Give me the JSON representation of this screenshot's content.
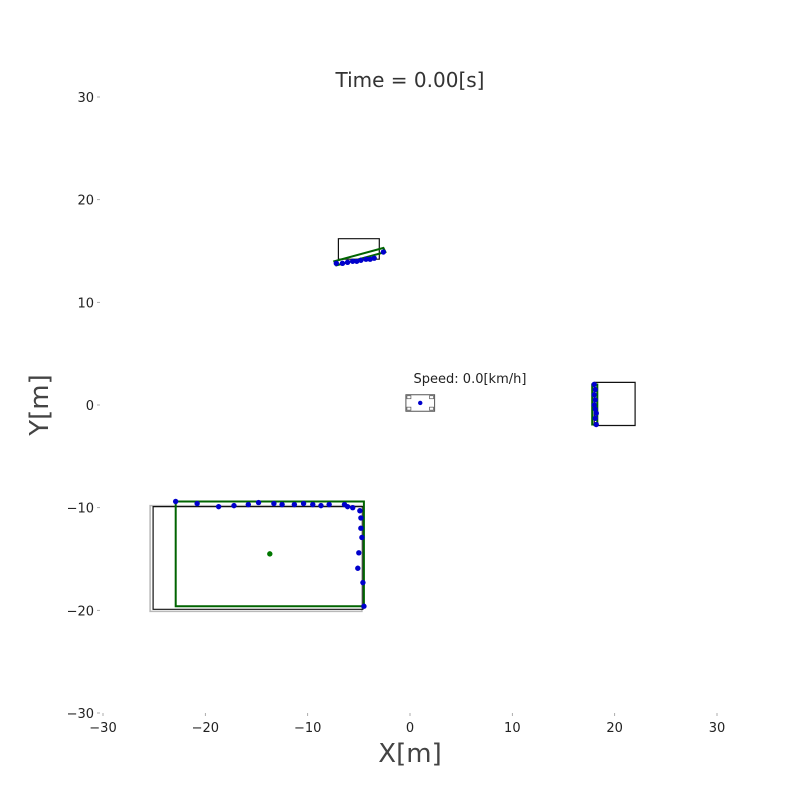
{
  "chart_data": {
    "type": "scatter",
    "title": "Time = 0.00[s]",
    "xlabel": "X[m]",
    "ylabel": "Y[m]",
    "xlim": [
      -30,
      30
    ],
    "ylim": [
      -30,
      30
    ],
    "xticks": [
      -30,
      -20,
      -10,
      0,
      10,
      20,
      30
    ],
    "yticks": [
      -30,
      -20,
      -10,
      0,
      10,
      20,
      30
    ],
    "xtick_labels": [
      "−30",
      "−20",
      "−10",
      "0",
      "10",
      "20",
      "30"
    ],
    "ytick_labels": [
      "−30",
      "−20",
      "−10",
      "0",
      "10",
      "20",
      "30"
    ],
    "grid": false,
    "speed_text": "Speed: 0.0[km/h]",
    "colors": {
      "points": "#0000cc",
      "fitted_box": "#006400",
      "true_box": "#111111",
      "gray_box": "#b8b8b8",
      "center": "#007700",
      "ego_vehicle": "#555555"
    },
    "objects": [
      {
        "id": "object-upper",
        "true_box": [
          [
            -7,
            16.2
          ],
          [
            -3,
            16.2
          ],
          [
            -3,
            14.2
          ],
          [
            -7,
            14.2
          ]
        ],
        "fitted_box": [
          [
            -7.2,
            13.6
          ],
          [
            -2.4,
            14.9
          ],
          [
            -2.6,
            15.3
          ],
          [
            -7.4,
            14.0
          ]
        ],
        "points": [
          [
            -7.2,
            13.8
          ],
          [
            -6.6,
            13.8
          ],
          [
            -6.1,
            13.9
          ],
          [
            -5.6,
            14.0
          ],
          [
            -5.2,
            14.0
          ],
          [
            -4.8,
            14.1
          ],
          [
            -4.3,
            14.2
          ],
          [
            -3.9,
            14.2
          ],
          [
            -3.5,
            14.3
          ],
          [
            -2.6,
            14.9
          ]
        ]
      },
      {
        "id": "object-right",
        "true_box": [
          [
            18,
            2.2
          ],
          [
            22,
            2.2
          ],
          [
            22,
            -2
          ],
          [
            18,
            -2
          ]
        ],
        "fitted_box": [
          [
            17.8,
            2.0
          ],
          [
            18.3,
            2.0
          ],
          [
            18.3,
            -1.9
          ],
          [
            17.8,
            -1.9
          ]
        ],
        "points": [
          [
            18.0,
            2.0
          ],
          [
            18.1,
            1.5
          ],
          [
            18.0,
            1.0
          ],
          [
            18.1,
            0.5
          ],
          [
            18.0,
            0.0
          ],
          [
            18.1,
            -0.4
          ],
          [
            18.2,
            -0.8
          ],
          [
            18.1,
            -1.3
          ],
          [
            18.2,
            -1.9
          ]
        ]
      },
      {
        "id": "object-large",
        "true_box": [
          [
            -25.1,
            -9.9
          ],
          [
            -4.6,
            -9.9
          ],
          [
            -4.6,
            -19.9
          ],
          [
            -25.1,
            -19.9
          ]
        ],
        "gray_box": [
          [
            -25.4,
            -9.8
          ],
          [
            -4.7,
            -9.8
          ],
          [
            -4.7,
            -20.1
          ],
          [
            -25.4,
            -20.1
          ]
        ],
        "fitted_box": [
          [
            -22.9,
            -9.4
          ],
          [
            -4.5,
            -9.4
          ],
          [
            -4.5,
            -19.6
          ],
          [
            -22.9,
            -19.6
          ]
        ],
        "center": [
          -13.7,
          -14.5
        ],
        "points": [
          [
            -22.9,
            -9.4
          ],
          [
            -20.8,
            -9.6
          ],
          [
            -18.7,
            -9.9
          ],
          [
            -17.2,
            -9.8
          ],
          [
            -15.8,
            -9.7
          ],
          [
            -14.8,
            -9.5
          ],
          [
            -13.3,
            -9.6
          ],
          [
            -12.5,
            -9.7
          ],
          [
            -11.3,
            -9.7
          ],
          [
            -10.4,
            -9.6
          ],
          [
            -9.5,
            -9.7
          ],
          [
            -8.7,
            -9.8
          ],
          [
            -7.9,
            -9.7
          ],
          [
            -6.4,
            -9.7
          ],
          [
            -6.1,
            -9.9
          ],
          [
            -5.6,
            -10.0
          ],
          [
            -4.9,
            -10.3
          ],
          [
            -4.8,
            -11.0
          ],
          [
            -4.8,
            -12.0
          ],
          [
            -4.7,
            -12.9
          ],
          [
            -5.0,
            -14.4
          ],
          [
            -5.1,
            -15.9
          ],
          [
            -4.6,
            -17.3
          ],
          [
            -4.5,
            -19.6
          ]
        ]
      }
    ],
    "ego_vehicle": {
      "outline": [
        [
          -0.4,
          1.0
        ],
        [
          2.4,
          1.0
        ],
        [
          2.4,
          -0.6
        ],
        [
          -0.4,
          -0.6
        ]
      ],
      "center": [
        1.0,
        0.2
      ]
    }
  }
}
